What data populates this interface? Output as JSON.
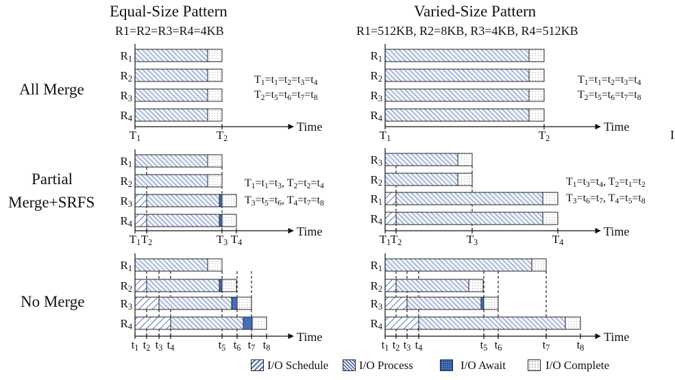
{
  "titles": {
    "left": "Equal-Size Pattern",
    "right": "Varied-Size Pattern"
  },
  "subtitles": {
    "left": "R1=R2=R3=R4=4KB",
    "right": "R1=512KB, R2=8KB, R3=4KB, R4=512KB"
  },
  "scenarios": {
    "all_merge": "All Merge",
    "partial_line1": "Partial",
    "partial_line2": "Merge+SRFS",
    "no_merge": "No Merge"
  },
  "axis_word": "Time",
  "edge_mark": "I",
  "colors": {
    "schedule": "#4f72b8",
    "process": "#3a5a9c",
    "await": "#4a78c8",
    "complete": "#9a9a9a",
    "stroke": "#222222"
  },
  "legend": [
    {
      "type": "schedule",
      "label": "I/O Schedule"
    },
    {
      "type": "process",
      "label": "I/O Process"
    },
    {
      "type": "await",
      "label": "I/O Await"
    },
    {
      "type": "complete",
      "label": "I/O Complete"
    }
  ],
  "panels": [
    {
      "name": "all-merge-equal",
      "rows": [
        {
          "label": "R1",
          "segs": [
            [
              "process",
              0,
              106
            ],
            [
              "complete",
              106,
              21
            ]
          ]
        },
        {
          "label": "R2",
          "segs": [
            [
              "process",
              0,
              106
            ],
            [
              "complete",
              106,
              21
            ]
          ]
        },
        {
          "label": "R3",
          "segs": [
            [
              "process",
              0,
              106
            ],
            [
              "complete",
              106,
              21
            ]
          ]
        },
        {
          "label": "R4",
          "segs": [
            [
              "process",
              0,
              106
            ],
            [
              "complete",
              106,
              21
            ]
          ]
        }
      ],
      "ticks": [
        {
          "pos": 0,
          "label": "T1"
        },
        {
          "pos": 127,
          "label": "T2"
        }
      ],
      "dashes": [],
      "equations": [
        "T1=t1=t2=t3=t4",
        "T2=t5=t6=t7=t8"
      ]
    },
    {
      "name": "all-merge-varied",
      "rows": [
        {
          "label": "R1",
          "segs": [
            [
              "process",
              0,
              210
            ],
            [
              "complete",
              210,
              22
            ]
          ]
        },
        {
          "label": "R2",
          "segs": [
            [
              "process",
              0,
              210
            ],
            [
              "complete",
              210,
              22
            ]
          ]
        },
        {
          "label": "R3",
          "segs": [
            [
              "process",
              0,
              210
            ],
            [
              "complete",
              210,
              22
            ]
          ]
        },
        {
          "label": "R4",
          "segs": [
            [
              "process",
              0,
              210
            ],
            [
              "complete",
              210,
              22
            ]
          ]
        }
      ],
      "ticks": [
        {
          "pos": 0,
          "label": "T1"
        },
        {
          "pos": 232,
          "label": "T2"
        }
      ],
      "dashes": [],
      "equations": [
        "T1=t1=t2=t3=t4",
        "T2=t5=t6=t7=t8"
      ]
    },
    {
      "name": "partial-merge-equal",
      "rows": [
        {
          "label": "R1",
          "segs": [
            [
              "process",
              0,
              106
            ],
            [
              "complete",
              106,
              21
            ]
          ]
        },
        {
          "label": "R2",
          "segs": [
            [
              "process",
              0,
              106
            ],
            [
              "complete",
              106,
              21
            ]
          ]
        },
        {
          "label": "R3",
          "segs": [
            [
              "schedule",
              0,
              17
            ],
            [
              "process",
              17,
              106
            ],
            [
              "await",
              123,
              4
            ],
            [
              "complete",
              127,
              21
            ]
          ]
        },
        {
          "label": "R4",
          "segs": [
            [
              "schedule",
              0,
              17
            ],
            [
              "process",
              17,
              106
            ],
            [
              "await",
              123,
              4
            ],
            [
              "complete",
              127,
              21
            ]
          ]
        }
      ],
      "ticks": [
        {
          "pos": 0,
          "label": "T1"
        },
        {
          "pos": 17,
          "label": "T2"
        },
        {
          "pos": 127,
          "label": "T3"
        },
        {
          "pos": 148,
          "label": "T4"
        }
      ],
      "dashes": [
        17,
        127
      ],
      "equations": [
        "T1=t1=t3, T2=t2=t4",
        "T3=t5=t6, T4=t7=t8"
      ]
    },
    {
      "name": "partial-merge-varied",
      "rows": [
        {
          "label": "R3",
          "segs": [
            [
              "process",
              0,
              106
            ],
            [
              "complete",
              106,
              21
            ]
          ]
        },
        {
          "label": "R2",
          "segs": [
            [
              "process",
              0,
              106
            ],
            [
              "complete",
              106,
              21
            ]
          ]
        },
        {
          "label": "R1",
          "segs": [
            [
              "schedule",
              0,
              16
            ],
            [
              "process",
              16,
              214
            ],
            [
              "complete",
              230,
              22
            ]
          ]
        },
        {
          "label": "R4",
          "segs": [
            [
              "schedule",
              0,
              16
            ],
            [
              "process",
              16,
              214
            ],
            [
              "complete",
              230,
              22
            ]
          ]
        }
      ],
      "ticks": [
        {
          "pos": 0,
          "label": "T1"
        },
        {
          "pos": 16,
          "label": "T2"
        },
        {
          "pos": 127,
          "label": "T3"
        },
        {
          "pos": 252,
          "label": "T4"
        }
      ],
      "dashes": [
        16,
        127
      ],
      "equations": [
        "T1=t3=t4, T2=t1=t2",
        "T3=t6=t7, T4=t5=t8"
      ]
    },
    {
      "name": "no-merge-equal",
      "rows": [
        {
          "label": "R1",
          "segs": [
            [
              "process",
              0,
              106
            ],
            [
              "complete",
              106,
              21
            ]
          ]
        },
        {
          "label": "R2",
          "segs": [
            [
              "schedule",
              0,
              17
            ],
            [
              "process",
              17,
              106
            ],
            [
              "await",
              123,
              4
            ],
            [
              "complete",
              127,
              21
            ]
          ]
        },
        {
          "label": "R3",
          "segs": [
            [
              "schedule",
              0,
              35
            ],
            [
              "process",
              35,
              106
            ],
            [
              "await",
              141,
              8
            ],
            [
              "complete",
              149,
              21
            ]
          ]
        },
        {
          "label": "R4",
          "segs": [
            [
              "schedule",
              0,
              52
            ],
            [
              "process",
              52,
              106
            ],
            [
              "await",
              158,
              13
            ],
            [
              "complete",
              171,
              21
            ]
          ]
        }
      ],
      "ticks": [
        {
          "pos": 0,
          "label": "t1"
        },
        {
          "pos": 17,
          "label": "t2"
        },
        {
          "pos": 35,
          "label": "t3"
        },
        {
          "pos": 52,
          "label": "t4"
        },
        {
          "pos": 127,
          "label": "t5"
        },
        {
          "pos": 149,
          "label": "t6"
        },
        {
          "pos": 170,
          "label": "t7"
        },
        {
          "pos": 192,
          "label": "t8"
        }
      ],
      "dashes": [
        17,
        35,
        52,
        127,
        149,
        170
      ],
      "equations": []
    },
    {
      "name": "no-merge-varied",
      "rows": [
        {
          "label": "R1",
          "segs": [
            [
              "process",
              0,
              214
            ],
            [
              "complete",
              214,
              21
            ]
          ]
        },
        {
          "label": "R2",
          "segs": [
            [
              "schedule",
              0,
              16
            ],
            [
              "process",
              16,
              106
            ],
            [
              "complete",
              122,
              21
            ]
          ]
        },
        {
          "label": "R3",
          "segs": [
            [
              "schedule",
              0,
              32
            ],
            [
              "process",
              32,
              108
            ],
            [
              "await",
              140,
              4
            ],
            [
              "complete",
              144,
              21
            ]
          ]
        },
        {
          "label": "R4",
          "segs": [
            [
              "schedule",
              0,
              49
            ],
            [
              "process",
              49,
              214
            ],
            [
              "complete",
              263,
              22
            ]
          ]
        }
      ],
      "ticks": [
        {
          "pos": 0,
          "label": "t1"
        },
        {
          "pos": 16,
          "label": "t2"
        },
        {
          "pos": 32,
          "label": "t3"
        },
        {
          "pos": 49,
          "label": "t4"
        },
        {
          "pos": 144,
          "label": "t5"
        },
        {
          "pos": 165,
          "label": "t6"
        },
        {
          "pos": 235,
          "label": "t7"
        },
        {
          "pos": 285,
          "label": "t8"
        }
      ],
      "dashes": [
        16,
        32,
        49,
        144,
        165,
        235
      ],
      "equations": []
    }
  ]
}
